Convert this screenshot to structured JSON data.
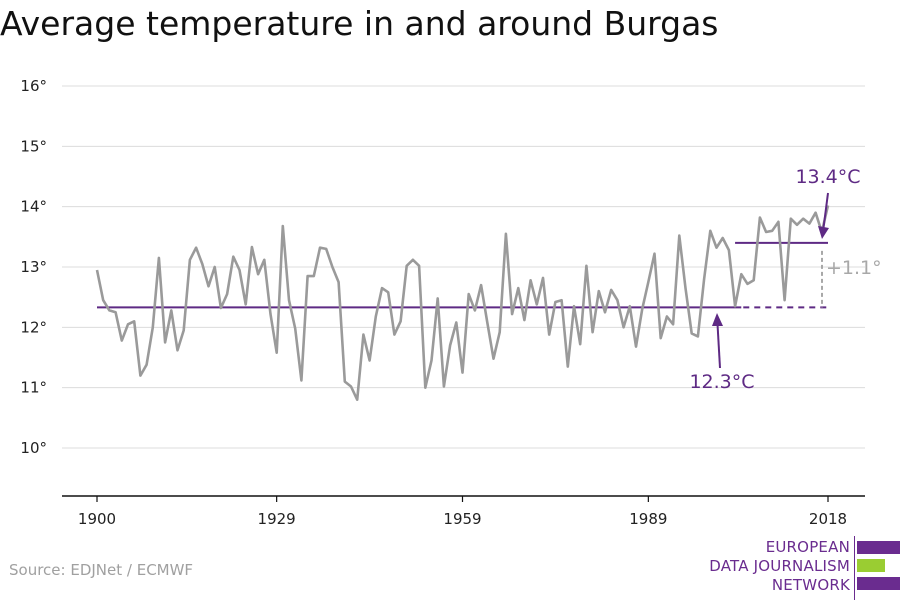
{
  "chart_data": {
    "type": "line",
    "title": "Average temperature in and around Burgas",
    "series": [
      {
        "x": [
          1900,
          1901,
          1902,
          1903,
          1904,
          1905,
          1906,
          1907,
          1908,
          1909,
          1910,
          1911,
          1912,
          1913,
          1914,
          1915,
          1916,
          1917,
          1918,
          1919,
          1920,
          1921,
          1922,
          1923,
          1924,
          1925,
          1926,
          1927,
          1928,
          1929,
          1930,
          1931,
          1932,
          1933,
          1934,
          1935,
          1936,
          1937,
          1938,
          1939,
          1940,
          1941,
          1942,
          1943,
          1944,
          1945,
          1946,
          1947,
          1948,
          1949,
          1950,
          1951,
          1952,
          1953,
          1954,
          1955,
          1956,
          1957,
          1958,
          1959,
          1960,
          1961,
          1962,
          1963,
          1964,
          1965,
          1966,
          1967,
          1968,
          1969,
          1970,
          1971,
          1972,
          1973,
          1974,
          1975,
          1976,
          1977,
          1978,
          1979,
          1980,
          1981,
          1982,
          1983,
          1984,
          1985,
          1986,
          1987,
          1988,
          1989,
          1990,
          1991,
          1992,
          1993,
          1994,
          1995,
          1996,
          1997,
          1998,
          1999,
          2000,
          2001,
          2002,
          2003,
          2004,
          2005,
          2006,
          2007,
          2008,
          2009,
          2010,
          2011,
          2012,
          2013,
          2014,
          2015,
          2016,
          2017,
          2018
        ],
        "values": [
          12.95,
          12.45,
          12.28,
          12.25,
          11.78,
          12.05,
          12.1,
          11.2,
          11.38,
          12.0,
          13.15,
          11.75,
          12.28,
          11.62,
          11.95,
          13.12,
          13.32,
          13.05,
          12.68,
          13.0,
          12.32,
          12.55,
          13.17,
          12.95,
          12.38,
          13.33,
          12.88,
          13.12,
          12.22,
          11.58,
          13.68,
          12.45,
          11.98,
          11.12,
          12.85,
          12.85,
          13.32,
          13.3,
          13.0,
          12.75,
          11.1,
          11.02,
          10.8,
          11.88,
          11.45,
          12.18,
          12.65,
          12.58,
          11.88,
          12.1,
          13.02,
          13.12,
          13.02,
          11.0,
          11.45,
          12.48,
          11.02,
          11.7,
          12.08,
          11.25,
          12.55,
          12.28,
          12.7,
          12.08,
          11.48,
          11.92,
          13.55,
          12.22,
          12.65,
          12.12,
          12.78,
          12.38,
          12.82,
          11.88,
          12.42,
          12.45,
          11.35,
          12.35,
          11.72,
          13.02,
          11.92,
          12.6,
          12.25,
          12.62,
          12.45,
          12.0,
          12.35,
          11.68,
          12.3,
          12.75,
          13.22,
          11.82,
          12.18,
          12.05,
          13.52,
          12.65,
          11.9,
          11.85,
          12.8,
          13.6,
          13.32,
          13.48,
          13.28,
          12.35,
          12.88,
          12.72,
          12.78,
          13.82,
          13.58,
          13.6,
          13.75,
          12.45,
          13.8,
          13.7,
          13.8,
          13.72,
          13.9,
          13.58,
          14.02
        ],
        "color": "#9a9a9a"
      }
    ],
    "xticks": [
      "1900",
      "1929",
      "1959",
      "1989",
      "2018"
    ],
    "yticks": [
      "10°",
      "11°",
      "12°",
      "13°",
      "14°",
      "15°",
      "16°"
    ],
    "ylim": [
      9.25,
      16.35
    ],
    "xlim": [
      1895,
      2024
    ],
    "grid": true,
    "reference_lines": [
      {
        "label": "12.3°C",
        "value": 12.33,
        "from": 1900,
        "to": 2018,
        "solid_to": 2004,
        "color": "#5e2a84"
      },
      {
        "label": "13.4°C",
        "value": 13.4,
        "from": 2003,
        "to": 2018,
        "color": "#5e2a84"
      }
    ],
    "difference_label": "+1.1°",
    "difference_color": "#a8a8a8"
  },
  "source": "Source: EDJNet / ECMWF",
  "logo": {
    "lines": [
      "EUROPEAN",
      "DATA JOURNALISM",
      "NETWORK"
    ],
    "text_color": "#6a2c8f",
    "bar_colors": [
      "#6a2c8f",
      "#9acd32",
      "#6a2c8f"
    ]
  }
}
